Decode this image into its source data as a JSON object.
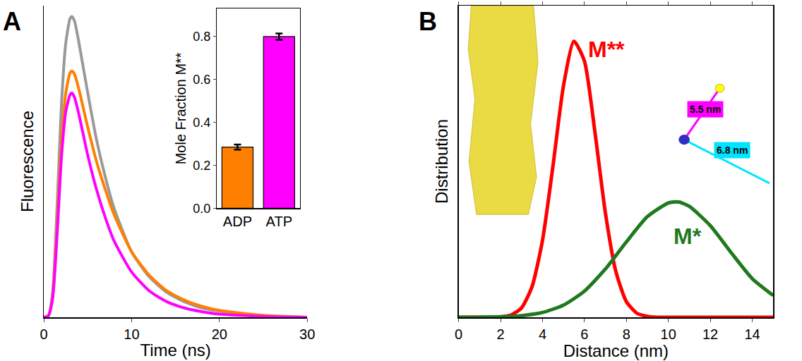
{
  "chart_data": [
    {
      "type": "line",
      "panel": "A",
      "x_label": "Time (ns)",
      "y_label": "Fluorescence",
      "x": [
        0,
        0.5,
        1,
        1.5,
        2,
        2.5,
        3,
        3.2,
        3.5,
        4,
        5,
        6,
        7,
        8,
        10,
        12,
        14,
        16,
        18,
        20,
        25,
        30
      ],
      "series": [
        {
          "color": "#999999",
          "values": [
            0,
            0.005,
            0.08,
            0.35,
            0.68,
            0.88,
            0.96,
            0.965,
            0.95,
            0.88,
            0.72,
            0.57,
            0.45,
            0.35,
            0.21,
            0.13,
            0.08,
            0.05,
            0.03,
            0.02,
            0.005,
            0
          ]
        },
        {
          "color": "#ff7f00",
          "values": [
            0,
            0.004,
            0.065,
            0.29,
            0.56,
            0.72,
            0.785,
            0.79,
            0.78,
            0.73,
            0.61,
            0.5,
            0.41,
            0.33,
            0.21,
            0.135,
            0.085,
            0.055,
            0.035,
            0.022,
            0.006,
            0
          ]
        },
        {
          "color": "#ff00ff",
          "values": [
            0,
            0.004,
            0.06,
            0.26,
            0.51,
            0.66,
            0.715,
            0.72,
            0.705,
            0.65,
            0.52,
            0.41,
            0.32,
            0.245,
            0.145,
            0.085,
            0.05,
            0.03,
            0.018,
            0.01,
            0.003,
            0
          ]
        }
      ],
      "xlim": [
        0,
        30
      ],
      "xticks": [
        0,
        10,
        20,
        30
      ],
      "ylim": [
        0,
        1
      ],
      "tick_labels": "x",
      "grid": false
    },
    {
      "type": "bar",
      "y_label": "Mole Fraction M**",
      "categories": [
        "ADP",
        "ATP"
      ],
      "values": [
        0.285,
        0.8
      ],
      "errors": [
        0.012,
        0.015
      ],
      "colors": [
        "#ff7f00",
        "#ff00ff"
      ],
      "ylim": [
        0,
        0.93
      ],
      "yticks": [
        {
          "value": 0,
          "label": "0.0"
        },
        0.2,
        0.4,
        0.6,
        0.8
      ],
      "grid": false
    },
    {
      "type": "line",
      "panel": "B",
      "x_label": "Distance (nm)",
      "y_label": "Distribution",
      "series": [
        {
          "name": "M**",
          "color": "#ff0000",
          "x": [
            0,
            1,
            1.5,
            2,
            2.5,
            3,
            3.5,
            4,
            4.5,
            5,
            5.5,
            6,
            6.5,
            7,
            7.5,
            8,
            8.5,
            9,
            9.5,
            10,
            12,
            15
          ],
          "values": [
            0,
            0,
            0,
            0.0014,
            0.0073,
            0.03,
            0.098,
            0.247,
            0.486,
            0.743,
            0.886,
            0.822,
            0.594,
            0.334,
            0.146,
            0.05,
            0.013,
            0.003,
            0,
            0,
            0,
            0
          ]
        },
        {
          "name": "M*",
          "color": "#1f7a1f",
          "x": [
            0,
            1,
            2,
            3,
            4,
            5,
            6,
            7,
            8,
            9,
            10,
            10.5,
            11,
            12,
            13,
            14,
            15
          ],
          "values": [
            0.0001,
            0.0004,
            0.0015,
            0.0052,
            0.0154,
            0.039,
            0.084,
            0.155,
            0.242,
            0.323,
            0.367,
            0.37,
            0.356,
            0.294,
            0.207,
            0.124,
            0.07
          ]
        }
      ],
      "annotations": [
        {
          "text": "5.5 nm",
          "color": "#ff00ff"
        },
        {
          "text": "6.8 nm",
          "color": "#00e5ff"
        }
      ],
      "xlim": [
        0,
        15
      ],
      "xticks": [
        0,
        2,
        4,
        6,
        8,
        10,
        12,
        14
      ],
      "ylim": [
        0,
        1
      ],
      "tick_labels": "x",
      "grid": false
    }
  ]
}
